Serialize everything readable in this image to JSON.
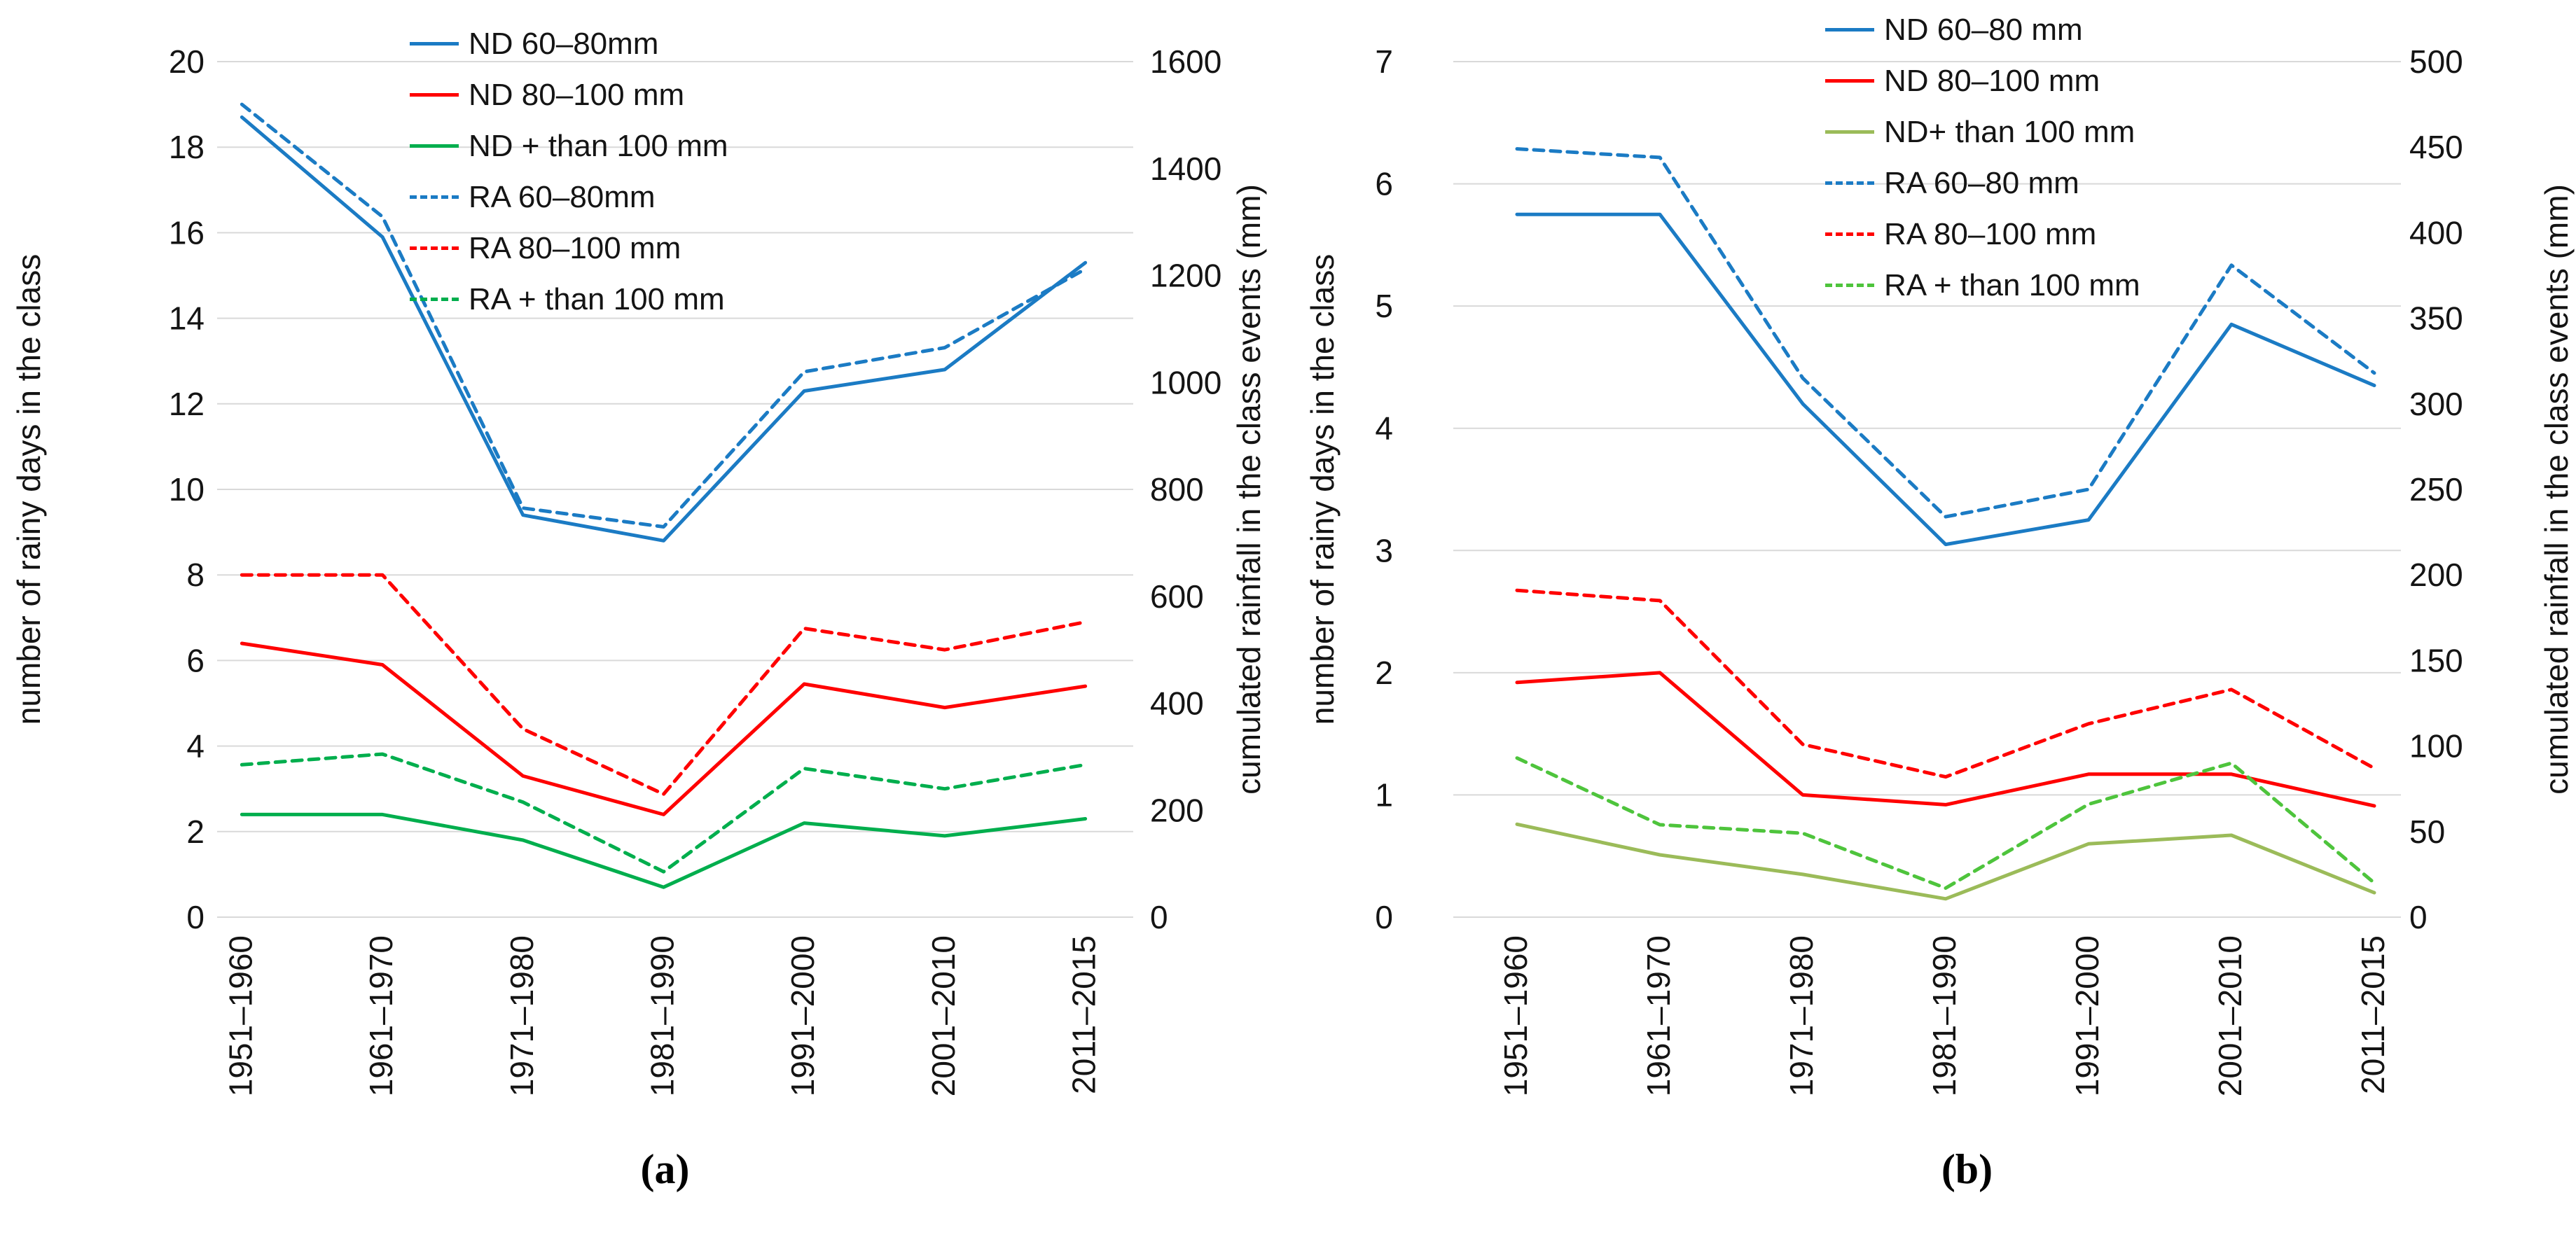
{
  "chart_data": [
    {
      "type": "line",
      "caption": "(a)",
      "categories": [
        "1951–1960",
        "1961–1970",
        "1971–1980",
        "1981–1990",
        "1991–2000",
        "2001–2010",
        "2011–2015"
      ],
      "ylabel_left": "number of rainy days in the class",
      "ylabel_right": "cumulated rainfall in the class events (mm)",
      "y_left": {
        "min": 0,
        "max": 20,
        "step": 2
      },
      "y_right": {
        "min": 0,
        "max": 1600,
        "step": 200
      },
      "grid": true,
      "legend_position": "top-center-overlay",
      "series": [
        {
          "name": "ND 60–80mm",
          "axis": "left",
          "line": "solid",
          "color": "#1B7BC4",
          "values": [
            18.7,
            15.9,
            9.4,
            8.8,
            12.3,
            12.8,
            15.3
          ]
        },
        {
          "name": "ND 80–100 mm",
          "axis": "left",
          "line": "solid",
          "color": "#FF0000",
          "values": [
            6.4,
            5.9,
            3.3,
            2.4,
            5.45,
            4.9,
            5.4
          ]
        },
        {
          "name": "ND + than 100 mm",
          "axis": "left",
          "line": "solid",
          "color": "#00AE4D",
          "values": [
            2.4,
            2.4,
            1.8,
            0.7,
            2.2,
            1.9,
            2.3
          ]
        },
        {
          "name": "RA 60–80mm",
          "axis": "right",
          "line": "dashed",
          "color": "#1B7BC4",
          "values": [
            1520,
            1310,
            765,
            730,
            1020,
            1065,
            1212
          ]
        },
        {
          "name": "RA 80–100 mm",
          "axis": "right",
          "line": "dashed",
          "color": "#FF0000",
          "values": [
            640,
            640,
            352,
            230,
            540,
            500,
            552
          ]
        },
        {
          "name": "RA + than 100 mm",
          "axis": "right",
          "line": "dashed",
          "color": "#00AE4D",
          "values": [
            285,
            305,
            215,
            85,
            278,
            240,
            285
          ]
        }
      ]
    },
    {
      "type": "line",
      "caption": "(b)",
      "categories": [
        "1951–1960",
        "1961–1970",
        "1971–1980",
        "1981–1990",
        "1991–2000",
        "2001–2010",
        "2011–2015"
      ],
      "ylabel_left": "number of rainy days in the class",
      "ylabel_right": "cumulated rainfall in the class events (mm)",
      "y_left": {
        "min": 0,
        "max": 7,
        "step": 1
      },
      "y_right": {
        "min": 0,
        "max": 500,
        "step": 50
      },
      "grid": true,
      "legend_position": "top-center-overlay",
      "series": [
        {
          "name": "ND 60–80 mm",
          "axis": "left",
          "line": "solid",
          "color": "#1B7BC4",
          "values": [
            5.75,
            5.75,
            4.2,
            3.05,
            3.25,
            4.85,
            4.35
          ]
        },
        {
          "name": "ND 80–100 mm",
          "axis": "left",
          "line": "solid",
          "color": "#FF0000",
          "values": [
            1.92,
            2.0,
            1.0,
            0.92,
            1.17,
            1.17,
            0.91
          ]
        },
        {
          "name": "ND+ than 100 mm",
          "axis": "left",
          "line": "solid",
          "color": "#9BBB59",
          "values": [
            0.76,
            0.51,
            0.35,
            0.15,
            0.6,
            0.67,
            0.2
          ]
        },
        {
          "name": "RA 60–80 mm",
          "axis": "right",
          "line": "dashed",
          "color": "#1B7BC4",
          "values": [
            449,
            444,
            315,
            234,
            250,
            381,
            318
          ]
        },
        {
          "name": "RA 80–100 mm",
          "axis": "right",
          "line": "dashed",
          "color": "#FF0000",
          "values": [
            191,
            185,
            101,
            82,
            113,
            133,
            87
          ]
        },
        {
          "name": "RA + than 100 mm",
          "axis": "right",
          "line": "dashed",
          "color": "#4EC43C",
          "values": [
            93,
            54,
            49,
            17,
            66,
            90,
            20
          ]
        }
      ]
    }
  ]
}
